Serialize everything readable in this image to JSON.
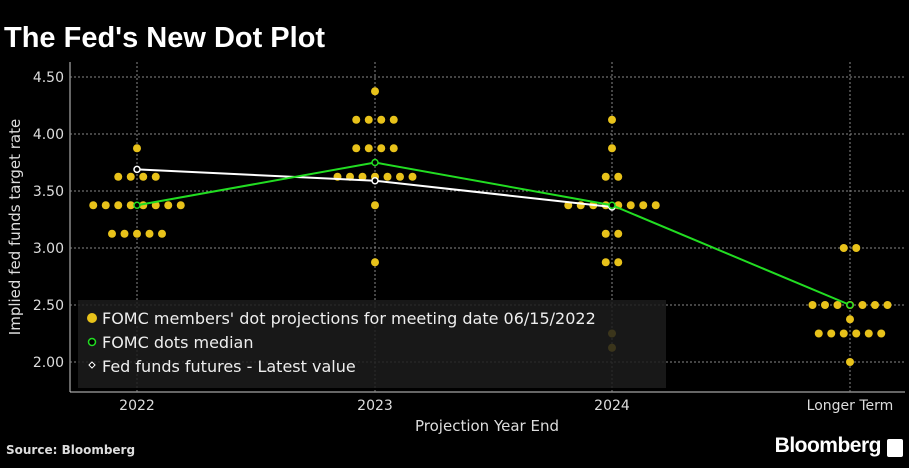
{
  "title": "The Fed's New Dot Plot",
  "source": "Source: Bloomberg",
  "brand": "Bloomberg",
  "colors": {
    "dots": "#e8c21a",
    "median": "#22dd22",
    "futures": "#ffffff",
    "grid": "#888888",
    "legend_bg": "#1c1c1c"
  },
  "chart_data": {
    "type": "scatter",
    "xlabel": "Projection Year End",
    "ylabel": "Implied fed funds target rate",
    "categories": [
      "2022",
      "2023",
      "2024",
      "Longer Term"
    ],
    "yticks": [
      "2.00",
      "2.50",
      "3.00",
      "3.50",
      "4.00",
      "4.50"
    ],
    "ylim": [
      1.9,
      4.63
    ],
    "grid": true,
    "legend_placement": "bottom-left",
    "legend": [
      "FOMC members' dot projections for meeting date 06/15/2022",
      "FOMC dots median",
      "Fed funds futures - Latest value"
    ],
    "dots": [
      [
        [
          3.875,
          1
        ],
        [
          3.625,
          4
        ],
        [
          3.375,
          8
        ],
        [
          3.125,
          5
        ]
      ],
      [
        [
          4.375,
          1
        ],
        [
          4.125,
          4
        ],
        [
          3.875,
          4
        ],
        [
          3.625,
          7
        ],
        [
          3.375,
          1
        ],
        [
          2.875,
          1
        ]
      ],
      [
        [
          4.125,
          1
        ],
        [
          3.875,
          1
        ],
        [
          3.625,
          2
        ],
        [
          3.375,
          8
        ],
        [
          3.125,
          2
        ],
        [
          2.875,
          2
        ],
        [
          2.25,
          1
        ],
        [
          2.125,
          1
        ]
      ],
      [
        [
          3.0,
          2
        ],
        [
          2.5,
          7
        ],
        [
          2.375,
          1
        ],
        [
          2.25,
          6
        ],
        [
          2.0,
          1
        ]
      ]
    ],
    "median": [
      3.375,
      3.75,
      3.375,
      2.5
    ],
    "futures": [
      3.69,
      3.59,
      3.36
    ]
  }
}
